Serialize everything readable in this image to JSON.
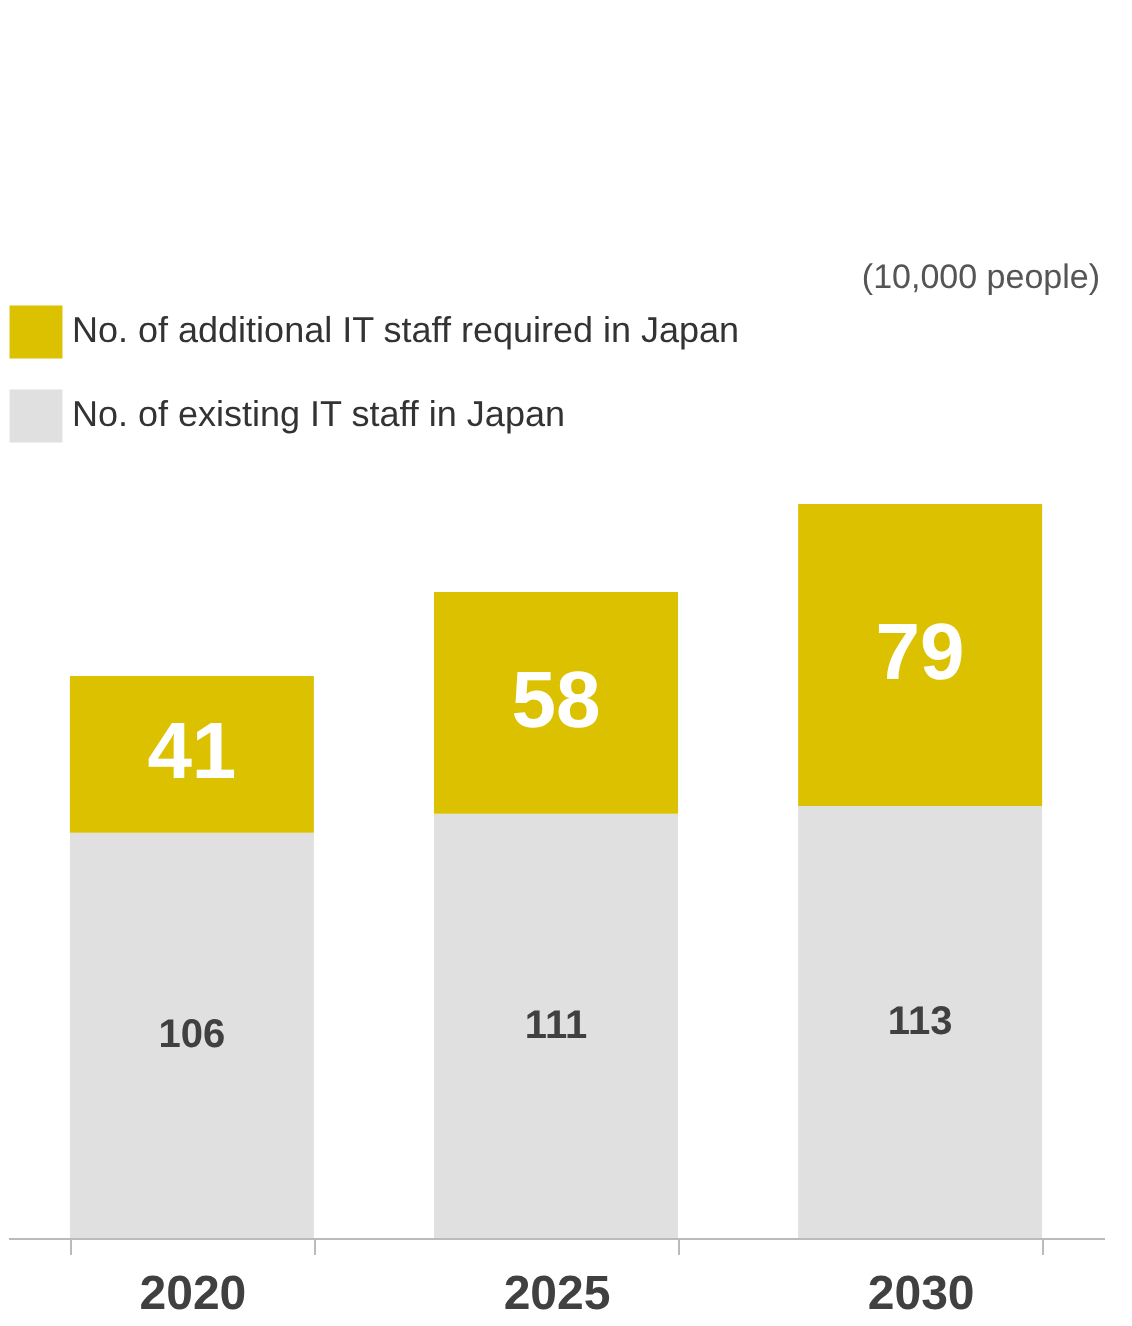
{
  "chart_data": {
    "type": "bar",
    "stacked": true,
    "categories": [
      "2020",
      "2025",
      "2030"
    ],
    "series": [
      {
        "name": "No. of existing IT staff in Japan",
        "color": "#e0e0e0",
        "values": [
          106,
          111,
          113
        ]
      },
      {
        "name": "No. of additional IT staff required in Japan",
        "color": "#dcc100",
        "values": [
          41,
          58,
          79
        ]
      }
    ],
    "data_labels": true,
    "legend": "top left",
    "grid": false,
    "annotations": [
      "(10,000 people)"
    ]
  }
}
